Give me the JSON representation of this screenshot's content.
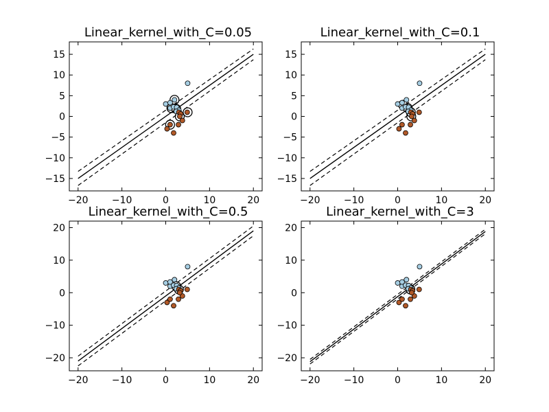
{
  "figure": {
    "background": "#ffffff"
  },
  "colors": {
    "class_a_fill": "#a6cee3",
    "class_b_fill": "#b15928",
    "marker_edge": "#000000",
    "line": "#000000"
  },
  "chart_data": [
    {
      "type": "scatter",
      "title": "Linear_kernel_with_C=0.05",
      "xlim": [
        -22,
        22
      ],
      "ylim": [
        -18,
        18
      ],
      "xticks": [
        -20,
        -10,
        0,
        10,
        20
      ],
      "yticks": [
        -15,
        -10,
        -5,
        0,
        5,
        10,
        15
      ],
      "grid": false,
      "boundary": {
        "x": [
          -20,
          20
        ],
        "decision": [
          -15,
          15
        ],
        "margin_upper": [
          -13.3,
          16.3
        ],
        "margin_lower": [
          -16.7,
          13.7
        ]
      },
      "series": [
        {
          "points": [
            [
              5,
              8
            ],
            [
              0,
              3
            ],
            [
              1,
              2
            ],
            [
              1,
              3.3
            ],
            [
              1.8,
              2.3
            ],
            [
              2,
              4
            ],
            [
              2.5,
              2.2
            ],
            [
              3,
              1.5
            ],
            [
              2.4,
              1.2
            ]
          ]
        },
        {
          "points": [
            [
              3,
              1
            ],
            [
              3.4,
              0.6
            ],
            [
              3.8,
              -1
            ],
            [
              2.9,
              -2
            ],
            [
              1.8,
              -4
            ],
            [
              0.3,
              -3
            ],
            [
              1,
              -2
            ],
            [
              4.9,
              1
            ],
            [
              3.2,
              0
            ]
          ]
        }
      ],
      "support_vectors": [
        [
          2,
          4
        ],
        [
          1.3,
          2
        ],
        [
          2.4,
          1.8
        ],
        [
          5,
          1
        ],
        [
          3.2,
          0
        ],
        [
          1,
          -2
        ]
      ]
    },
    {
      "type": "scatter",
      "title": "Linear_kernel_with_C=0.1",
      "xlim": [
        -22,
        22
      ],
      "ylim": [
        -18,
        18
      ],
      "xticks": [
        -20,
        -10,
        0,
        10,
        20
      ],
      "yticks": [
        -15,
        -10,
        -5,
        0,
        5,
        10,
        15
      ],
      "grid": false,
      "boundary": {
        "x": [
          -20,
          20
        ],
        "decision": [
          -15,
          15
        ],
        "margin_upper": [
          -13.3,
          16.3
        ],
        "margin_lower": [
          -16.7,
          13.7
        ]
      },
      "series": [
        {
          "points": [
            [
              5,
              8
            ],
            [
              0,
              3
            ],
            [
              1,
              2
            ],
            [
              1,
              3.3
            ],
            [
              1.8,
              2.3
            ],
            [
              2,
              4
            ],
            [
              2.5,
              2.2
            ],
            [
              3,
              1.5
            ],
            [
              2.4,
              1.2
            ]
          ]
        },
        {
          "points": [
            [
              3,
              1
            ],
            [
              3.4,
              0.6
            ],
            [
              3.8,
              -1
            ],
            [
              2.9,
              -2
            ],
            [
              1.8,
              -4
            ],
            [
              0.3,
              -3
            ],
            [
              1,
              -2
            ],
            [
              4.9,
              1
            ],
            [
              3.2,
              0
            ]
          ]
        }
      ],
      "support_vectors": [
        [
          1.2,
          2.8
        ],
        [
          2.3,
          2
        ],
        [
          3,
          1
        ],
        [
          3.1,
          0
        ]
      ]
    },
    {
      "type": "scatter",
      "title": "Linear_kernel_with_C=0.5",
      "xlim": [
        -22,
        22
      ],
      "ylim": [
        -24,
        22
      ],
      "xticks": [
        -20,
        -10,
        0,
        10,
        20
      ],
      "yticks": [
        -20,
        -10,
        0,
        10,
        20
      ],
      "grid": false,
      "boundary": {
        "x": [
          -20,
          20
        ],
        "decision": [
          -21,
          19
        ],
        "margin_upper": [
          -19.5,
          20.5
        ],
        "margin_lower": [
          -22.5,
          17.5
        ]
      },
      "series": [
        {
          "points": [
            [
              5,
              8
            ],
            [
              0,
              3
            ],
            [
              1,
              2
            ],
            [
              1,
              3.3
            ],
            [
              1.8,
              2.3
            ],
            [
              2,
              4
            ],
            [
              2.5,
              2.2
            ],
            [
              3,
              1.5
            ],
            [
              2.4,
              1.2
            ]
          ]
        },
        {
          "points": [
            [
              3,
              1
            ],
            [
              3.4,
              0.6
            ],
            [
              3.8,
              -1
            ],
            [
              2.9,
              -2
            ],
            [
              1.8,
              -4
            ],
            [
              0.3,
              -3
            ],
            [
              1,
              -2
            ],
            [
              4.9,
              1
            ],
            [
              3.2,
              0
            ]
          ]
        }
      ],
      "support_vectors": [
        [
          2.4,
          2
        ],
        [
          3,
          1
        ]
      ]
    },
    {
      "type": "scatter",
      "title": "Linear_kernel_with_C=3",
      "xlim": [
        -22,
        22
      ],
      "ylim": [
        -24,
        22
      ],
      "xticks": [
        -20,
        -10,
        0,
        10,
        20
      ],
      "yticks": [
        -20,
        -10,
        0,
        10,
        20
      ],
      "grid": false,
      "boundary": {
        "x": [
          -20,
          20
        ],
        "decision": [
          -21.2,
          18.8
        ],
        "margin_upper": [
          -20.5,
          19.5
        ],
        "margin_lower": [
          -21.9,
          18.1
        ]
      },
      "series": [
        {
          "points": [
            [
              5,
              8
            ],
            [
              0,
              3
            ],
            [
              1,
              2
            ],
            [
              1,
              3.3
            ],
            [
              1.8,
              2.3
            ],
            [
              2,
              4
            ],
            [
              2.5,
              2.2
            ],
            [
              3,
              1.5
            ],
            [
              2.4,
              1.2
            ]
          ]
        },
        {
          "points": [
            [
              3,
              1
            ],
            [
              3.4,
              0.6
            ],
            [
              3.8,
              -1
            ],
            [
              2.9,
              -2
            ],
            [
              1.8,
              -4
            ],
            [
              0.3,
              -3
            ],
            [
              1,
              -2
            ],
            [
              4.9,
              1
            ],
            [
              3.2,
              0
            ]
          ]
        }
      ],
      "support_vectors": [
        [
          2.9,
          1
        ]
      ]
    }
  ]
}
